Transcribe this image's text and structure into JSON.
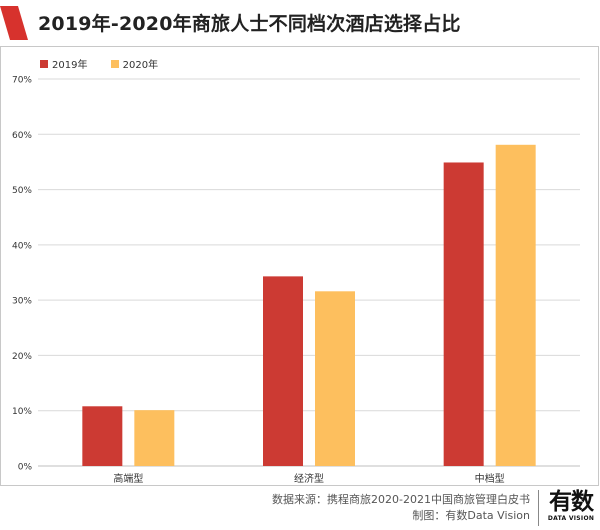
{
  "header": {
    "title": "2019年-2020年商旅人士不同档次酒店选择占比"
  },
  "colors": {
    "accent": "#d7322d",
    "series_2019": "#cc3a33",
    "series_2020": "#fdbf5e",
    "grid": "#d9d9d9",
    "axis_text": "#333333"
  },
  "chart_data": {
    "type": "bar",
    "title": "2019年-2020年商旅人士不同档次酒店选择占比",
    "categories": [
      "高端型",
      "经济型",
      "中档型"
    ],
    "series": [
      {
        "name": "2019年",
        "values": [
          10.8,
          34.3,
          54.9
        ]
      },
      {
        "name": "2020年",
        "values": [
          10.1,
          31.6,
          58.1
        ]
      }
    ],
    "ylim": [
      0,
      70
    ],
    "yticks": [
      0,
      10,
      20,
      30,
      40,
      50,
      60,
      70
    ],
    "ytick_labels": [
      "0%",
      "10%",
      "20%",
      "30%",
      "40%",
      "50%",
      "60%",
      "70%"
    ],
    "xlabel": "",
    "ylabel": "",
    "grid": true,
    "legend_position": "top-left"
  },
  "footer": {
    "source": "数据来源：携程商旅2020-2021中国商旅管理白皮书",
    "credit": "制图：有数Data Vision"
  },
  "brand": {
    "logo_text": "有数",
    "logo_sub": "DATA VISION"
  }
}
